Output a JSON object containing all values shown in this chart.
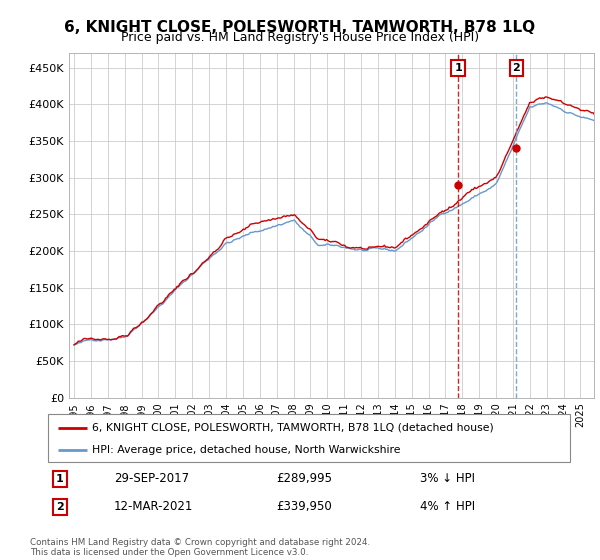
{
  "title": "6, KNIGHT CLOSE, POLESWORTH, TAMWORTH, B78 1LQ",
  "subtitle": "Price paid vs. HM Land Registry's House Price Index (HPI)",
  "yticks": [
    0,
    50000,
    100000,
    150000,
    200000,
    250000,
    300000,
    350000,
    400000,
    450000
  ],
  "ytick_labels": [
    "£0",
    "£50K",
    "£100K",
    "£150K",
    "£200K",
    "£250K",
    "£300K",
    "£350K",
    "£400K",
    "£450K"
  ],
  "xlim_start": 1994.7,
  "xlim_end": 2025.8,
  "ylim_bottom": 0,
  "ylim_top": 470000,
  "sale1_x": 2017.75,
  "sale1_y": 289995,
  "sale2_x": 2021.2,
  "sale2_y": 339950,
  "sale1_date": "29-SEP-2017",
  "sale1_price": "£289,995",
  "sale1_hpi": "3% ↓ HPI",
  "sale2_date": "12-MAR-2021",
  "sale2_price": "£339,950",
  "sale2_hpi": "4% ↑ HPI",
  "hpi_line_color": "#6699cc",
  "price_line_color": "#cc0000",
  "grid_color": "#cccccc",
  "background_color": "#ffffff",
  "legend_label_price": "6, KNIGHT CLOSE, POLESWORTH, TAMWORTH, B78 1LQ (detached house)",
  "legend_label_hpi": "HPI: Average price, detached house, North Warwickshire",
  "footnote": "Contains HM Land Registry data © Crown copyright and database right 2024.\nThis data is licensed under the Open Government Licence v3.0."
}
